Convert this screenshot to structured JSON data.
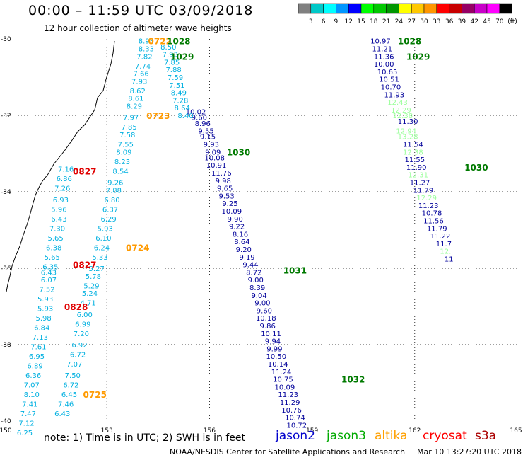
{
  "header": {
    "title": "00:00 – 11:59 UTC 03/09/2018",
    "subtitle": "12 hour collection of altimeter wave heights"
  },
  "colorbar": {
    "unit": "(ft)",
    "ticks": [
      "3",
      "6",
      "9",
      "12",
      "15",
      "18",
      "21",
      "24",
      "27",
      "30",
      "33",
      "36",
      "39",
      "42",
      "45",
      "70"
    ],
    "colors": [
      "#808080",
      "#00c8c8",
      "#00ffff",
      "#0096ff",
      "#0000ff",
      "#00ff00",
      "#00c800",
      "#009600",
      "#ffff00",
      "#ffc800",
      "#ff9600",
      "#ff0000",
      "#c80000",
      "#960064",
      "#c800c8",
      "#ff00ff",
      "#000000"
    ]
  },
  "map": {
    "x_ticks": [
      "150",
      "153",
      "156",
      "159",
      "162",
      "165"
    ],
    "y_ticks": [
      "-30",
      "-32",
      "-34",
      "-36",
      "-38",
      "-40"
    ]
  },
  "chart_data": {
    "type": "scatter",
    "series": [
      {
        "name": "jason2",
        "color": "#00009a",
        "points": [
          {
            "lon": 155.6,
            "lat": -31.9,
            "v": "10.02"
          },
          {
            "lon": 155.7,
            "lat": -32.05,
            "v": "9.60"
          },
          {
            "lon": 155.8,
            "lat": -32.2,
            "v": "8.96"
          },
          {
            "lon": 155.9,
            "lat": -32.4,
            "v": "9.55"
          },
          {
            "lon": 155.95,
            "lat": -32.55,
            "v": "9.15"
          },
          {
            "lon": 156.05,
            "lat": -32.75,
            "v": "9.93"
          },
          {
            "lon": 156.1,
            "lat": -32.95,
            "v": "9.09"
          },
          {
            "lon": 156.15,
            "lat": -33.1,
            "v": "10.08"
          },
          {
            "lon": 156.2,
            "lat": -33.3,
            "v": "10.91"
          },
          {
            "lon": 156.35,
            "lat": -33.5,
            "v": "11.76"
          },
          {
            "lon": 156.4,
            "lat": -33.7,
            "v": "9.98"
          },
          {
            "lon": 156.45,
            "lat": -33.9,
            "v": "9.65"
          },
          {
            "lon": 156.5,
            "lat": -34.1,
            "v": "9.53"
          },
          {
            "lon": 156.6,
            "lat": -34.3,
            "v": "9.25"
          },
          {
            "lon": 156.65,
            "lat": -34.5,
            "v": "10.09"
          },
          {
            "lon": 156.75,
            "lat": -34.7,
            "v": "9.90"
          },
          {
            "lon": 156.8,
            "lat": -34.9,
            "v": "9.22"
          },
          {
            "lon": 156.9,
            "lat": -35.1,
            "v": "8.16"
          },
          {
            "lon": 156.95,
            "lat": -35.3,
            "v": "8.64"
          },
          {
            "lon": 157.0,
            "lat": -35.5,
            "v": "9.20"
          },
          {
            "lon": 157.1,
            "lat": -35.7,
            "v": "9.19"
          },
          {
            "lon": 157.2,
            "lat": -35.9,
            "v": "9.44"
          },
          {
            "lon": 157.3,
            "lat": -36.1,
            "v": "8.72"
          },
          {
            "lon": 157.35,
            "lat": -36.3,
            "v": "9.00"
          },
          {
            "lon": 157.4,
            "lat": -36.5,
            "v": "8.39"
          },
          {
            "lon": 157.45,
            "lat": -36.7,
            "v": "9.04"
          },
          {
            "lon": 157.55,
            "lat": -36.9,
            "v": "9.00"
          },
          {
            "lon": 157.6,
            "lat": -37.1,
            "v": "9.60"
          },
          {
            "lon": 157.65,
            "lat": -37.3,
            "v": "10.18"
          },
          {
            "lon": 157.7,
            "lat": -37.5,
            "v": "9.86"
          },
          {
            "lon": 157.8,
            "lat": -37.7,
            "v": "10.11"
          },
          {
            "lon": 157.85,
            "lat": -37.9,
            "v": "9.94"
          },
          {
            "lon": 157.9,
            "lat": -38.1,
            "v": "9.99"
          },
          {
            "lon": 157.95,
            "lat": -38.3,
            "v": "10.50"
          },
          {
            "lon": 158.0,
            "lat": -38.5,
            "v": "10.14"
          },
          {
            "lon": 158.1,
            "lat": -38.7,
            "v": "11.24"
          },
          {
            "lon": 158.15,
            "lat": -38.9,
            "v": "10.75"
          },
          {
            "lon": 158.2,
            "lat": -39.1,
            "v": "10.09"
          },
          {
            "lon": 158.3,
            "lat": -39.3,
            "v": "11.23"
          },
          {
            "lon": 158.35,
            "lat": -39.5,
            "v": "11.29"
          },
          {
            "lon": 158.4,
            "lat": -39.7,
            "v": "10.76"
          },
          {
            "lon": 158.5,
            "lat": -39.9,
            "v": "10.74"
          },
          {
            "lon": 158.55,
            "lat": -40.1,
            "v": "10.72"
          },
          {
            "lon": 161.0,
            "lat": -30.05,
            "v": "10.97"
          },
          {
            "lon": 161.05,
            "lat": -30.25,
            "v": "11.21"
          },
          {
            "lon": 161.1,
            "lat": -30.45,
            "v": "11.36"
          },
          {
            "lon": 161.1,
            "lat": -30.65,
            "v": "10.00"
          },
          {
            "lon": 161.2,
            "lat": -30.85,
            "v": "10.65"
          },
          {
            "lon": 161.25,
            "lat": -31.05,
            "v": "10.51"
          },
          {
            "lon": 161.3,
            "lat": -31.25,
            "v": "10.70"
          },
          {
            "lon": 161.4,
            "lat": -31.45,
            "v": "11.93"
          },
          {
            "lon": 161.8,
            "lat": -32.15,
            "v": "11.30"
          },
          {
            "lon": 161.95,
            "lat": -32.75,
            "v": "11.54"
          },
          {
            "lon": 162.0,
            "lat": -33.15,
            "v": "11.55"
          },
          {
            "lon": 162.05,
            "lat": -33.35,
            "v": "11.90"
          },
          {
            "lon": 162.15,
            "lat": -33.75,
            "v": "11.27"
          },
          {
            "lon": 162.25,
            "lat": -33.95,
            "v": "11.79"
          },
          {
            "lon": 162.4,
            "lat": -34.35,
            "v": "11.23"
          },
          {
            "lon": 162.5,
            "lat": -34.55,
            "v": "10.78"
          },
          {
            "lon": 162.55,
            "lat": -34.75,
            "v": "11.56"
          },
          {
            "lon": 162.65,
            "lat": -34.95,
            "v": "11.79"
          },
          {
            "lon": 162.75,
            "lat": -35.15,
            "v": "11.22"
          },
          {
            "lon": 162.85,
            "lat": -35.35,
            "v": "11.7"
          },
          {
            "lon": 163.0,
            "lat": -35.75,
            "v": "11"
          }
        ]
      },
      {
        "name": "jason3",
        "color": "#9aff9a",
        "points": [
          {
            "lon": 161.5,
            "lat": -31.65,
            "v": "12.43"
          },
          {
            "lon": 161.6,
            "lat": -31.85,
            "v": "12.29"
          },
          {
            "lon": 161.65,
            "lat": -32.0,
            "v": "12.38"
          },
          {
            "lon": 161.75,
            "lat": -32.4,
            "v": "12.94"
          },
          {
            "lon": 161.8,
            "lat": -32.55,
            "v": "13.28"
          },
          {
            "lon": 161.95,
            "lat": -32.95,
            "v": "12.38"
          },
          {
            "lon": 162.1,
            "lat": -33.55,
            "v": "12.31"
          },
          {
            "lon": 162.35,
            "lat": -34.15,
            "v": "12.29"
          },
          {
            "lon": 162.9,
            "lat": -35.55,
            "v": "12."
          }
        ]
      },
      {
        "name": "altika",
        "color": "#00b0e0",
        "points": [
          {
            "lon": 154.15,
            "lat": -30.05,
            "v": "8.93"
          },
          {
            "lon": 154.15,
            "lat": -30.25,
            "v": "8.33"
          },
          {
            "lon": 154.1,
            "lat": -30.45,
            "v": "7.82"
          },
          {
            "lon": 154.05,
            "lat": -30.7,
            "v": "7.74"
          },
          {
            "lon": 154.0,
            "lat": -30.9,
            "v": "7.66"
          },
          {
            "lon": 153.95,
            "lat": -31.1,
            "v": "7.93"
          },
          {
            "lon": 153.9,
            "lat": -31.35,
            "v": "8.62"
          },
          {
            "lon": 153.85,
            "lat": -31.55,
            "v": "8.61"
          },
          {
            "lon": 153.8,
            "lat": -31.75,
            "v": "8.29"
          },
          {
            "lon": 153.7,
            "lat": -32.05,
            "v": "7.97"
          },
          {
            "lon": 153.65,
            "lat": -32.3,
            "v": "7.85"
          },
          {
            "lon": 153.6,
            "lat": -32.5,
            "v": "7.58"
          },
          {
            "lon": 153.55,
            "lat": -32.75,
            "v": "7.55"
          },
          {
            "lon": 153.5,
            "lat": -32.95,
            "v": "8.09"
          },
          {
            "lon": 153.45,
            "lat": -33.2,
            "v": "8.23"
          },
          {
            "lon": 153.4,
            "lat": -33.45,
            "v": "8.54"
          },
          {
            "lon": 153.25,
            "lat": -33.75,
            "v": "9.26"
          },
          {
            "lon": 153.2,
            "lat": -33.95,
            "v": "7.88"
          },
          {
            "lon": 153.15,
            "lat": -34.2,
            "v": "6.80"
          },
          {
            "lon": 153.1,
            "lat": -34.45,
            "v": "6.37"
          },
          {
            "lon": 153.05,
            "lat": -34.7,
            "v": "6.29"
          },
          {
            "lon": 152.95,
            "lat": -34.95,
            "v": "5.93"
          },
          {
            "lon": 152.9,
            "lat": -35.2,
            "v": "6.10"
          },
          {
            "lon": 152.85,
            "lat": -35.45,
            "v": "6.24"
          },
          {
            "lon": 152.8,
            "lat": -35.7,
            "v": "5.33"
          },
          {
            "lon": 152.7,
            "lat": -36.0,
            "v": "5.27"
          },
          {
            "lon": 152.6,
            "lat": -36.2,
            "v": "5.78"
          },
          {
            "lon": 152.55,
            "lat": -36.45,
            "v": "5.29"
          },
          {
            "lon": 152.5,
            "lat": -36.65,
            "v": "5.24"
          },
          {
            "lon": 152.45,
            "lat": -36.9,
            "v": "4.71"
          },
          {
            "lon": 152.35,
            "lat": -37.2,
            "v": "6.00"
          },
          {
            "lon": 152.3,
            "lat": -37.45,
            "v": "6.99"
          },
          {
            "lon": 152.25,
            "lat": -37.7,
            "v": "7.20"
          },
          {
            "lon": 152.2,
            "lat": -38.0,
            "v": "6.92"
          },
          {
            "lon": 152.15,
            "lat": -38.25,
            "v": "6.72"
          },
          {
            "lon": 152.05,
            "lat": -38.5,
            "v": "7.07"
          },
          {
            "lon": 152.0,
            "lat": -38.8,
            "v": "7.50"
          },
          {
            "lon": 151.95,
            "lat": -39.05,
            "v": "6.72"
          },
          {
            "lon": 151.9,
            "lat": -39.3,
            "v": "6.45"
          },
          {
            "lon": 151.8,
            "lat": -39.55,
            "v": "7.46"
          },
          {
            "lon": 151.7,
            "lat": -39.8,
            "v": "6.43"
          },
          {
            "lon": 151.8,
            "lat": -33.4,
            "v": "7.16"
          },
          {
            "lon": 151.75,
            "lat": -33.65,
            "v": "6.86"
          },
          {
            "lon": 151.7,
            "lat": -33.9,
            "v": "7.26"
          },
          {
            "lon": 151.65,
            "lat": -34.2,
            "v": "6.93"
          },
          {
            "lon": 151.6,
            "lat": -34.45,
            "v": "5.96"
          },
          {
            "lon": 151.6,
            "lat": -34.7,
            "v": "6.43"
          },
          {
            "lon": 151.55,
            "lat": -34.95,
            "v": "7.30"
          },
          {
            "lon": 151.5,
            "lat": -35.2,
            "v": "5.65"
          },
          {
            "lon": 151.45,
            "lat": -35.45,
            "v": "6.38"
          },
          {
            "lon": 151.4,
            "lat": -35.7,
            "v": "5.65"
          },
          {
            "lon": 151.35,
            "lat": -35.95,
            "v": "6.35"
          },
          {
            "lon": 151.3,
            "lat": -36.1,
            "v": "6.43"
          },
          {
            "lon": 151.3,
            "lat": -36.3,
            "v": "6.07"
          },
          {
            "lon": 151.25,
            "lat": -36.55,
            "v": "7.52"
          },
          {
            "lon": 151.2,
            "lat": -36.8,
            "v": "5.93"
          },
          {
            "lon": 151.2,
            "lat": -37.05,
            "v": "5.93"
          },
          {
            "lon": 151.15,
            "lat": -37.3,
            "v": "5.98"
          },
          {
            "lon": 151.1,
            "lat": -37.55,
            "v": "6.84"
          },
          {
            "lon": 151.05,
            "lat": -37.8,
            "v": "7.13"
          },
          {
            "lon": 151.0,
            "lat": -38.05,
            "v": "7.61"
          },
          {
            "lon": 150.95,
            "lat": -38.3,
            "v": "6.95"
          },
          {
            "lon": 150.9,
            "lat": -38.55,
            "v": "6.89"
          },
          {
            "lon": 150.85,
            "lat": -38.8,
            "v": "6.36"
          },
          {
            "lon": 150.8,
            "lat": -39.05,
            "v": "7.07"
          },
          {
            "lon": 150.8,
            "lat": -39.3,
            "v": "8.10"
          },
          {
            "lon": 150.75,
            "lat": -39.55,
            "v": "7.41"
          },
          {
            "lon": 150.7,
            "lat": -39.8,
            "v": "7.47"
          },
          {
            "lon": 150.65,
            "lat": -40.05,
            "v": "7.12"
          },
          {
            "lon": 150.6,
            "lat": -40.3,
            "v": "6.25"
          },
          {
            "lon": 154.8,
            "lat": -30.2,
            "v": "8.50"
          },
          {
            "lon": 154.85,
            "lat": -30.4,
            "v": "7.93"
          },
          {
            "lon": 154.9,
            "lat": -30.6,
            "v": "7.85"
          },
          {
            "lon": 154.95,
            "lat": -30.8,
            "v": "7.88"
          },
          {
            "lon": 155.0,
            "lat": -31.0,
            "v": "7.59"
          },
          {
            "lon": 155.05,
            "lat": -31.2,
            "v": "7.51"
          },
          {
            "lon": 155.1,
            "lat": -31.4,
            "v": "8.49"
          },
          {
            "lon": 155.15,
            "lat": -31.6,
            "v": "7.28"
          },
          {
            "lon": 155.2,
            "lat": -31.8,
            "v": "8.64"
          },
          {
            "lon": 155.3,
            "lat": -32.0,
            "v": "8.40"
          }
        ]
      }
    ],
    "time_labels": [
      {
        "lon": 154.55,
        "lat": -30.05,
        "v": "0722",
        "color": "#ff9a00"
      },
      {
        "lon": 155.1,
        "lat": -30.05,
        "v": "1028",
        "color": "#007a00"
      },
      {
        "lon": 155.2,
        "lat": -30.45,
        "v": "1029",
        "color": "#007a00"
      },
      {
        "lon": 154.5,
        "lat": -32.0,
        "v": "0723",
        "color": "#ff9a00"
      },
      {
        "lon": 156.85,
        "lat": -32.95,
        "v": "1030",
        "color": "#007a00"
      },
      {
        "lon": 152.35,
        "lat": -33.45,
        "v": "0827",
        "color": "#e00000"
      },
      {
        "lon": 153.9,
        "lat": -35.45,
        "v": "0724",
        "color": "#ff9a00"
      },
      {
        "lon": 152.35,
        "lat": -35.9,
        "v": "0827",
        "color": "#e00000"
      },
      {
        "lon": 158.5,
        "lat": -36.05,
        "v": "1031",
        "color": "#007a00"
      },
      {
        "lon": 152.1,
        "lat": -37.0,
        "v": "0828",
        "color": "#e00000"
      },
      {
        "lon": 152.65,
        "lat": -39.3,
        "v": "0725",
        "color": "#ff9a00"
      },
      {
        "lon": 160.2,
        "lat": -38.9,
        "v": "1032",
        "color": "#007a00"
      },
      {
        "lon": 161.85,
        "lat": -30.05,
        "v": "1028",
        "color": "#007a00"
      },
      {
        "lon": 162.1,
        "lat": -30.45,
        "v": "1029",
        "color": "#007a00"
      },
      {
        "lon": 163.8,
        "lat": -33.35,
        "v": "1030",
        "color": "#007a00"
      }
    ]
  },
  "footer": {
    "note": "note: 1) Time is in UTC; 2) SWH is in feet",
    "legend": [
      {
        "name": "jason2",
        "color": "#0000cc"
      },
      {
        "name": "jason3",
        "color": "#00aa00"
      },
      {
        "name": "altika",
        "color": "#ffa000"
      },
      {
        "name": "cryosat",
        "color": "#ff0000"
      },
      {
        "name": "s3a",
        "color": "#aa0000"
      }
    ],
    "credit": "NOAA/NESDIS Center for Satellite Applications and Research",
    "timestamp": "Mar 10 13:27:20 UTC 2018"
  }
}
